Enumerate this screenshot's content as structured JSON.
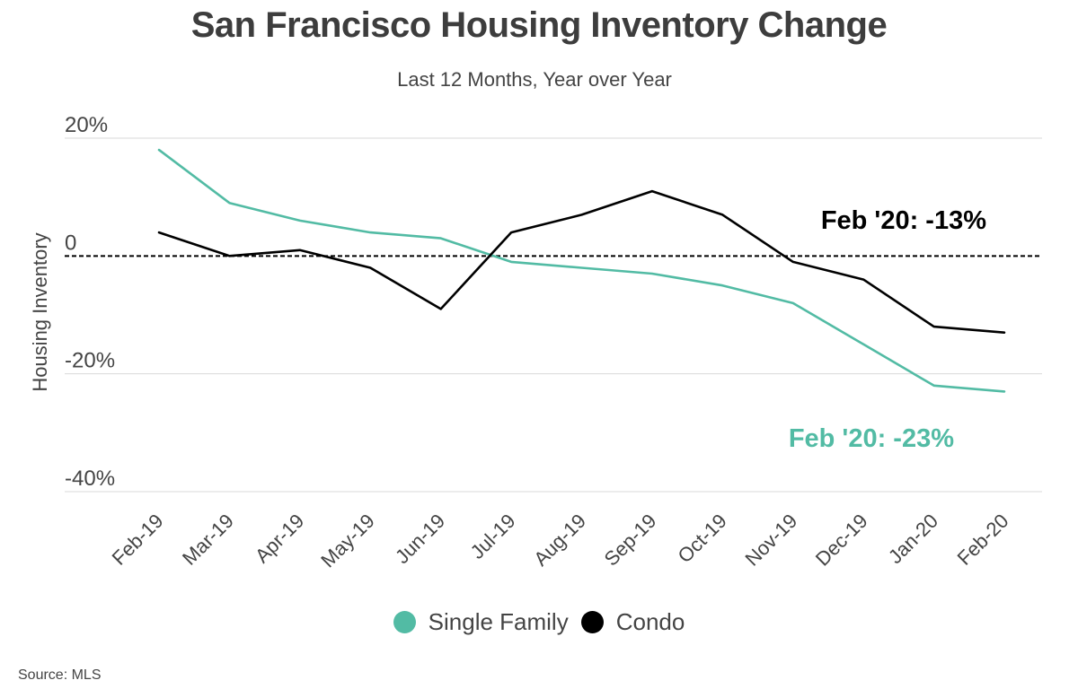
{
  "title": "San Francisco Housing Inventory Change",
  "subtitle": "Last 12 Months, Year over Year",
  "source": "Source:  MLS",
  "legend": [
    {
      "label": "Single Family",
      "color": "#52bba4"
    },
    {
      "label": "Condo",
      "color": "#000000"
    }
  ],
  "chart_data": {
    "type": "line",
    "ylabel": "Housing Inventory",
    "xlabel": "",
    "ylim": [
      -40,
      20
    ],
    "yticks": [
      20,
      0,
      -20,
      -40
    ],
    "ytick_labels": [
      "20%",
      "0",
      "-20%",
      "-40%"
    ],
    "grid": true,
    "categories": [
      "Feb-19",
      "Mar-19",
      "Apr-19",
      "May-19",
      "Jun-19",
      "Jul-19",
      "Aug-19",
      "Sep-19",
      "Oct-19",
      "Nov-19",
      "Dec-19",
      "Jan-20",
      "Feb-20"
    ],
    "series": [
      {
        "name": "Single Family",
        "color": "#52bba4",
        "values": [
          18,
          9,
          6,
          4,
          3,
          -1,
          -2,
          -3,
          -5,
          -8,
          -15,
          -22,
          -23
        ]
      },
      {
        "name": "Condo",
        "color": "#000000",
        "values": [
          4,
          0,
          1,
          -2,
          -9,
          4,
          7,
          11,
          7,
          -1,
          -4,
          -12,
          -13
        ]
      }
    ],
    "reference_line": {
      "y": 0,
      "style": "dotted"
    },
    "annotations": [
      {
        "text": "Feb '20: -13%",
        "series": "Condo",
        "color": "#000000"
      },
      {
        "text": "Feb '20: -23%",
        "series": "Single Family",
        "color": "#52bba4"
      }
    ]
  }
}
